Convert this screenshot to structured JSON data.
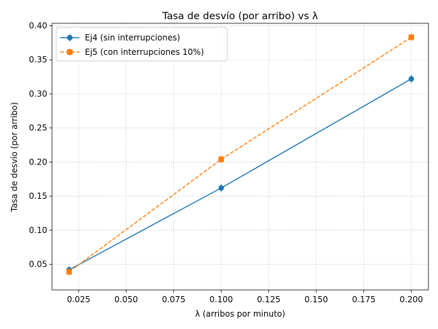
{
  "chart_data": {
    "type": "line",
    "title": "Tasa de desvío (por arribo) vs λ",
    "xlabel": "λ (arribos por minuto)",
    "ylabel": "Tasa de desvío (por arribo)",
    "xlim": [
      0.011,
      0.209
    ],
    "ylim": [
      0.0125,
      0.4035
    ],
    "xticks": [
      0.025,
      0.05,
      0.075,
      0.1,
      0.125,
      0.15,
      0.175,
      0.2
    ],
    "xtick_labels": [
      "0.025",
      "0.050",
      "0.075",
      "0.100",
      "0.125",
      "0.150",
      "0.175",
      "0.200"
    ],
    "yticks": [
      0.05,
      0.1,
      0.15,
      0.2,
      0.25,
      0.3,
      0.35,
      0.4
    ],
    "ytick_labels": [
      "0.05",
      "0.10",
      "0.15",
      "0.20",
      "0.25",
      "0.30",
      "0.35",
      "0.40"
    ],
    "grid": true,
    "legend_position": "top-left",
    "x": [
      0.02,
      0.1,
      0.2
    ],
    "series": [
      {
        "name": "Ej4 (sin interrupciones)",
        "values": [
          0.042,
          0.162,
          0.322
        ],
        "color": "#1f77b4",
        "marker": "circle",
        "line": "solid"
      },
      {
        "name": "Ej5 (con interrupciones 10%)",
        "values": [
          0.039,
          0.204,
          0.383
        ],
        "color": "#ff7f0e",
        "marker": "square",
        "line": "dashed"
      }
    ]
  }
}
